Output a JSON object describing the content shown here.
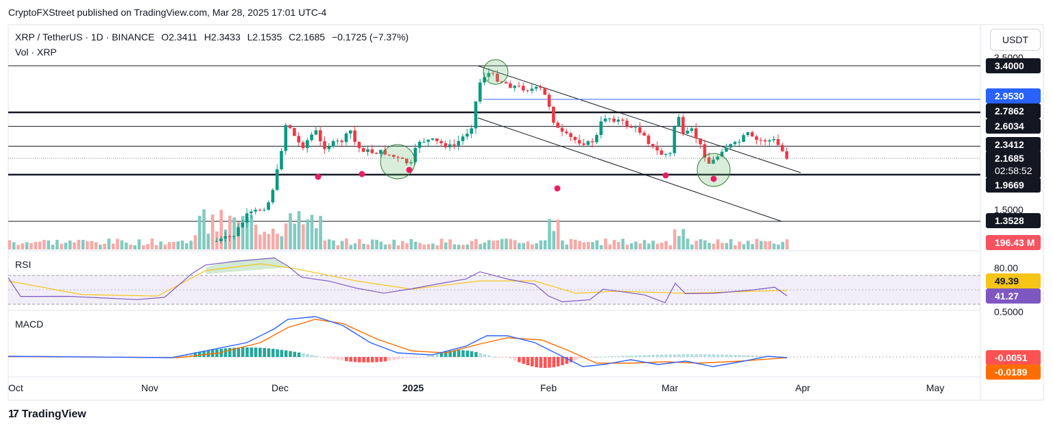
{
  "publisher_line": "CryptoFXStreet published on TradingView.com, Mar 28, 2025 17:01 UTC-4",
  "legend": {
    "symbol": "XRP / TetherUS · 1D · BINANCE",
    "open_label": "O",
    "open": "2.3411",
    "high_label": "H",
    "high": "2.3433",
    "low_label": "L",
    "low": "2.1535",
    "close_label": "C",
    "close": "2.1685",
    "change": "−0.1725 (−7.37%)",
    "volume_label": "Vol · XRP"
  },
  "currency_button": "USDT",
  "brand": "TradingView",
  "colors": {
    "up": "#089981",
    "down": "#f23645",
    "volume_up": "#82cac0",
    "volume_down": "#f7a9a7",
    "rsi": "#7e57c2",
    "rsi_ma": "#f5c518",
    "macd": "#2962ff",
    "signal": "#ff6d00",
    "hist_up_strong": "#26a69a",
    "hist_up_weak": "#b2dfdb",
    "hist_down_strong": "#ff5252",
    "hist_down_weak": "#ffcdd2",
    "pivot_marker": "#e91e63",
    "highlight_circle": "#66bb6a"
  },
  "chart_data": [
    {
      "type": "candlestick",
      "pane": "price",
      "x_ticks": [
        "Oct",
        "Nov",
        "Dec",
        "2025",
        "Feb",
        "Mar",
        "Apr",
        "May"
      ],
      "y_axis_visible_ticks": [
        "3.5000",
        "1.5000"
      ],
      "horizontal_levels": [
        "3.4000",
        "2.9530",
        "2.7862",
        "2.6034",
        "2.3412",
        "1.9669",
        "1.3528"
      ],
      "current_price": "2.1685",
      "countdown": "02:58:52",
      "volume_label": "196.43 M",
      "annotations": [
        "descending channel",
        "support and resistance lines",
        "pivot-low markers",
        "highlighted reversal zones"
      ]
    },
    {
      "type": "line",
      "pane": "RSI",
      "title": "RSI",
      "axis_ticks": [
        "80.00"
      ],
      "series": [
        {
          "name": "RSI",
          "last": "41.27"
        },
        {
          "name": "RSI MA",
          "last": "49.39"
        }
      ]
    },
    {
      "type": "line",
      "pane": "MACD",
      "title": "MACD",
      "axis_ticks": [
        "0.5000"
      ],
      "series": [
        {
          "name": "MACD",
          "last": "-0.0051"
        },
        {
          "name": "Signal",
          "last": "-0.0189"
        }
      ]
    }
  ]
}
